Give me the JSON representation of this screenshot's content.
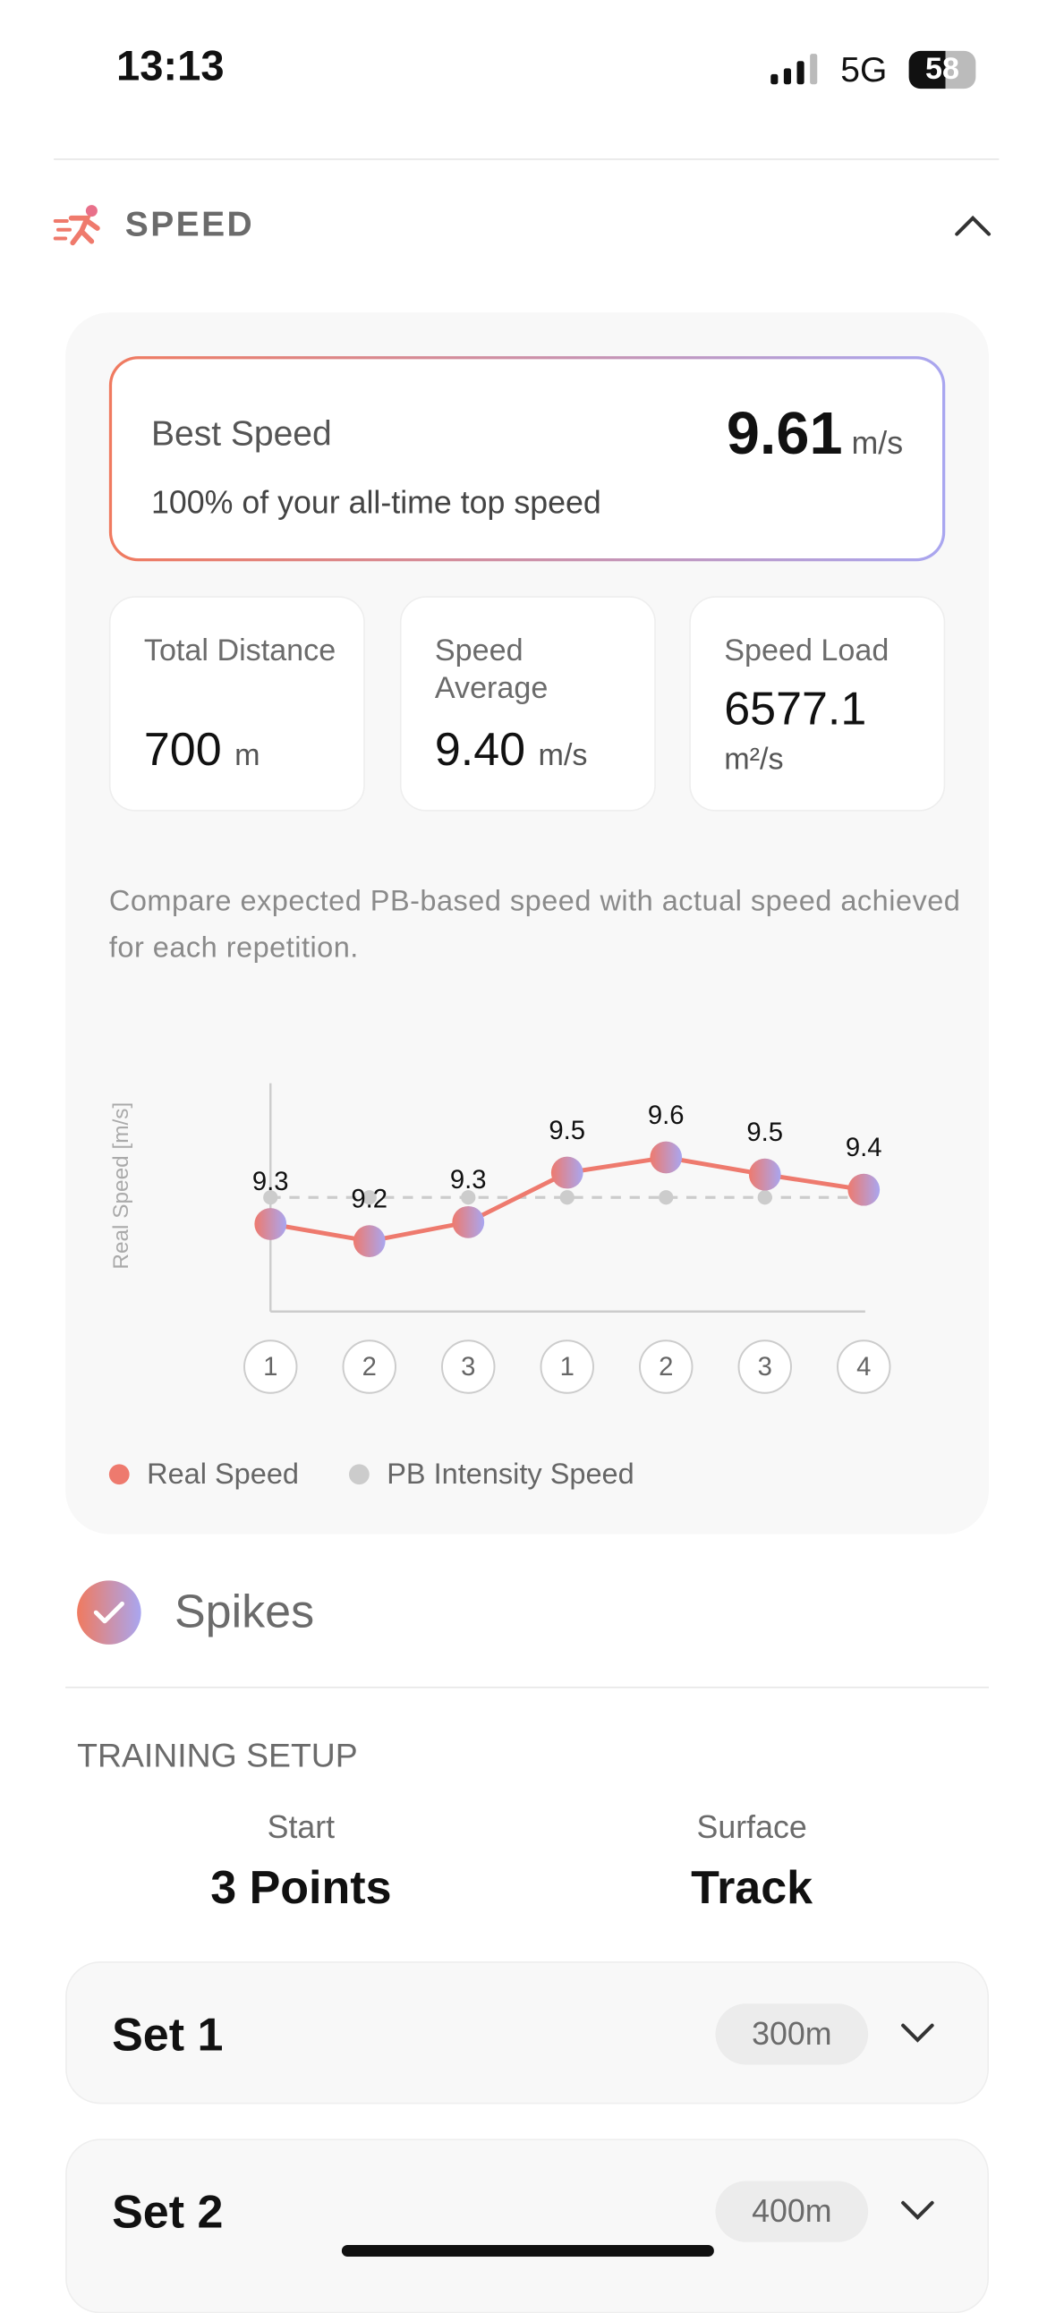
{
  "status_bar": {
    "time": "13:13",
    "network": "5G",
    "battery": "58"
  },
  "section": {
    "title": "SPEED"
  },
  "best_speed": {
    "label": "Best Speed",
    "value": "9.61",
    "unit": "m/s",
    "subtitle": "100% of your all-time top speed"
  },
  "stats": [
    {
      "label": "Total Distance",
      "value": "700",
      "unit": "m"
    },
    {
      "label": "Speed Average",
      "value": "9.40",
      "unit": "m/s"
    },
    {
      "label": "Speed Load",
      "value": "6577.1",
      "unit": "m²/s"
    }
  ],
  "chart_data": {
    "type": "line",
    "subtitle": "Compare expected PB-based speed with actual speed achieved for each repetition.",
    "y_label": "Real Speed [m/s]",
    "categories": [
      "1",
      "2",
      "3",
      "1",
      "2",
      "3",
      "4"
    ],
    "ylim": [
      8.8,
      10.0
    ],
    "series": [
      {
        "name": "Real Speed",
        "color": "#ee7a6e",
        "values": [
          9.26,
          9.17,
          9.27,
          9.53,
          9.61,
          9.52,
          9.44
        ],
        "value_labels": [
          "9.3",
          "9.2",
          "9.3",
          "9.5",
          "9.6",
          "9.5",
          "9.4"
        ]
      },
      {
        "name": "PB Intensity Speed",
        "color": "#cccccc",
        "values": [
          9.4,
          9.4,
          9.4,
          9.4,
          9.4,
          9.4,
          9.4
        ]
      }
    ]
  },
  "equipment": {
    "label": "Spikes"
  },
  "training_setup": {
    "title": "TRAINING SETUP",
    "items": [
      {
        "label": "Start",
        "value": "3 Points"
      },
      {
        "label": "Surface",
        "value": "Track"
      }
    ]
  },
  "sets": [
    {
      "name": "Set 1",
      "distance": "300m"
    },
    {
      "name": "Set 2",
      "distance": "400m"
    }
  ]
}
